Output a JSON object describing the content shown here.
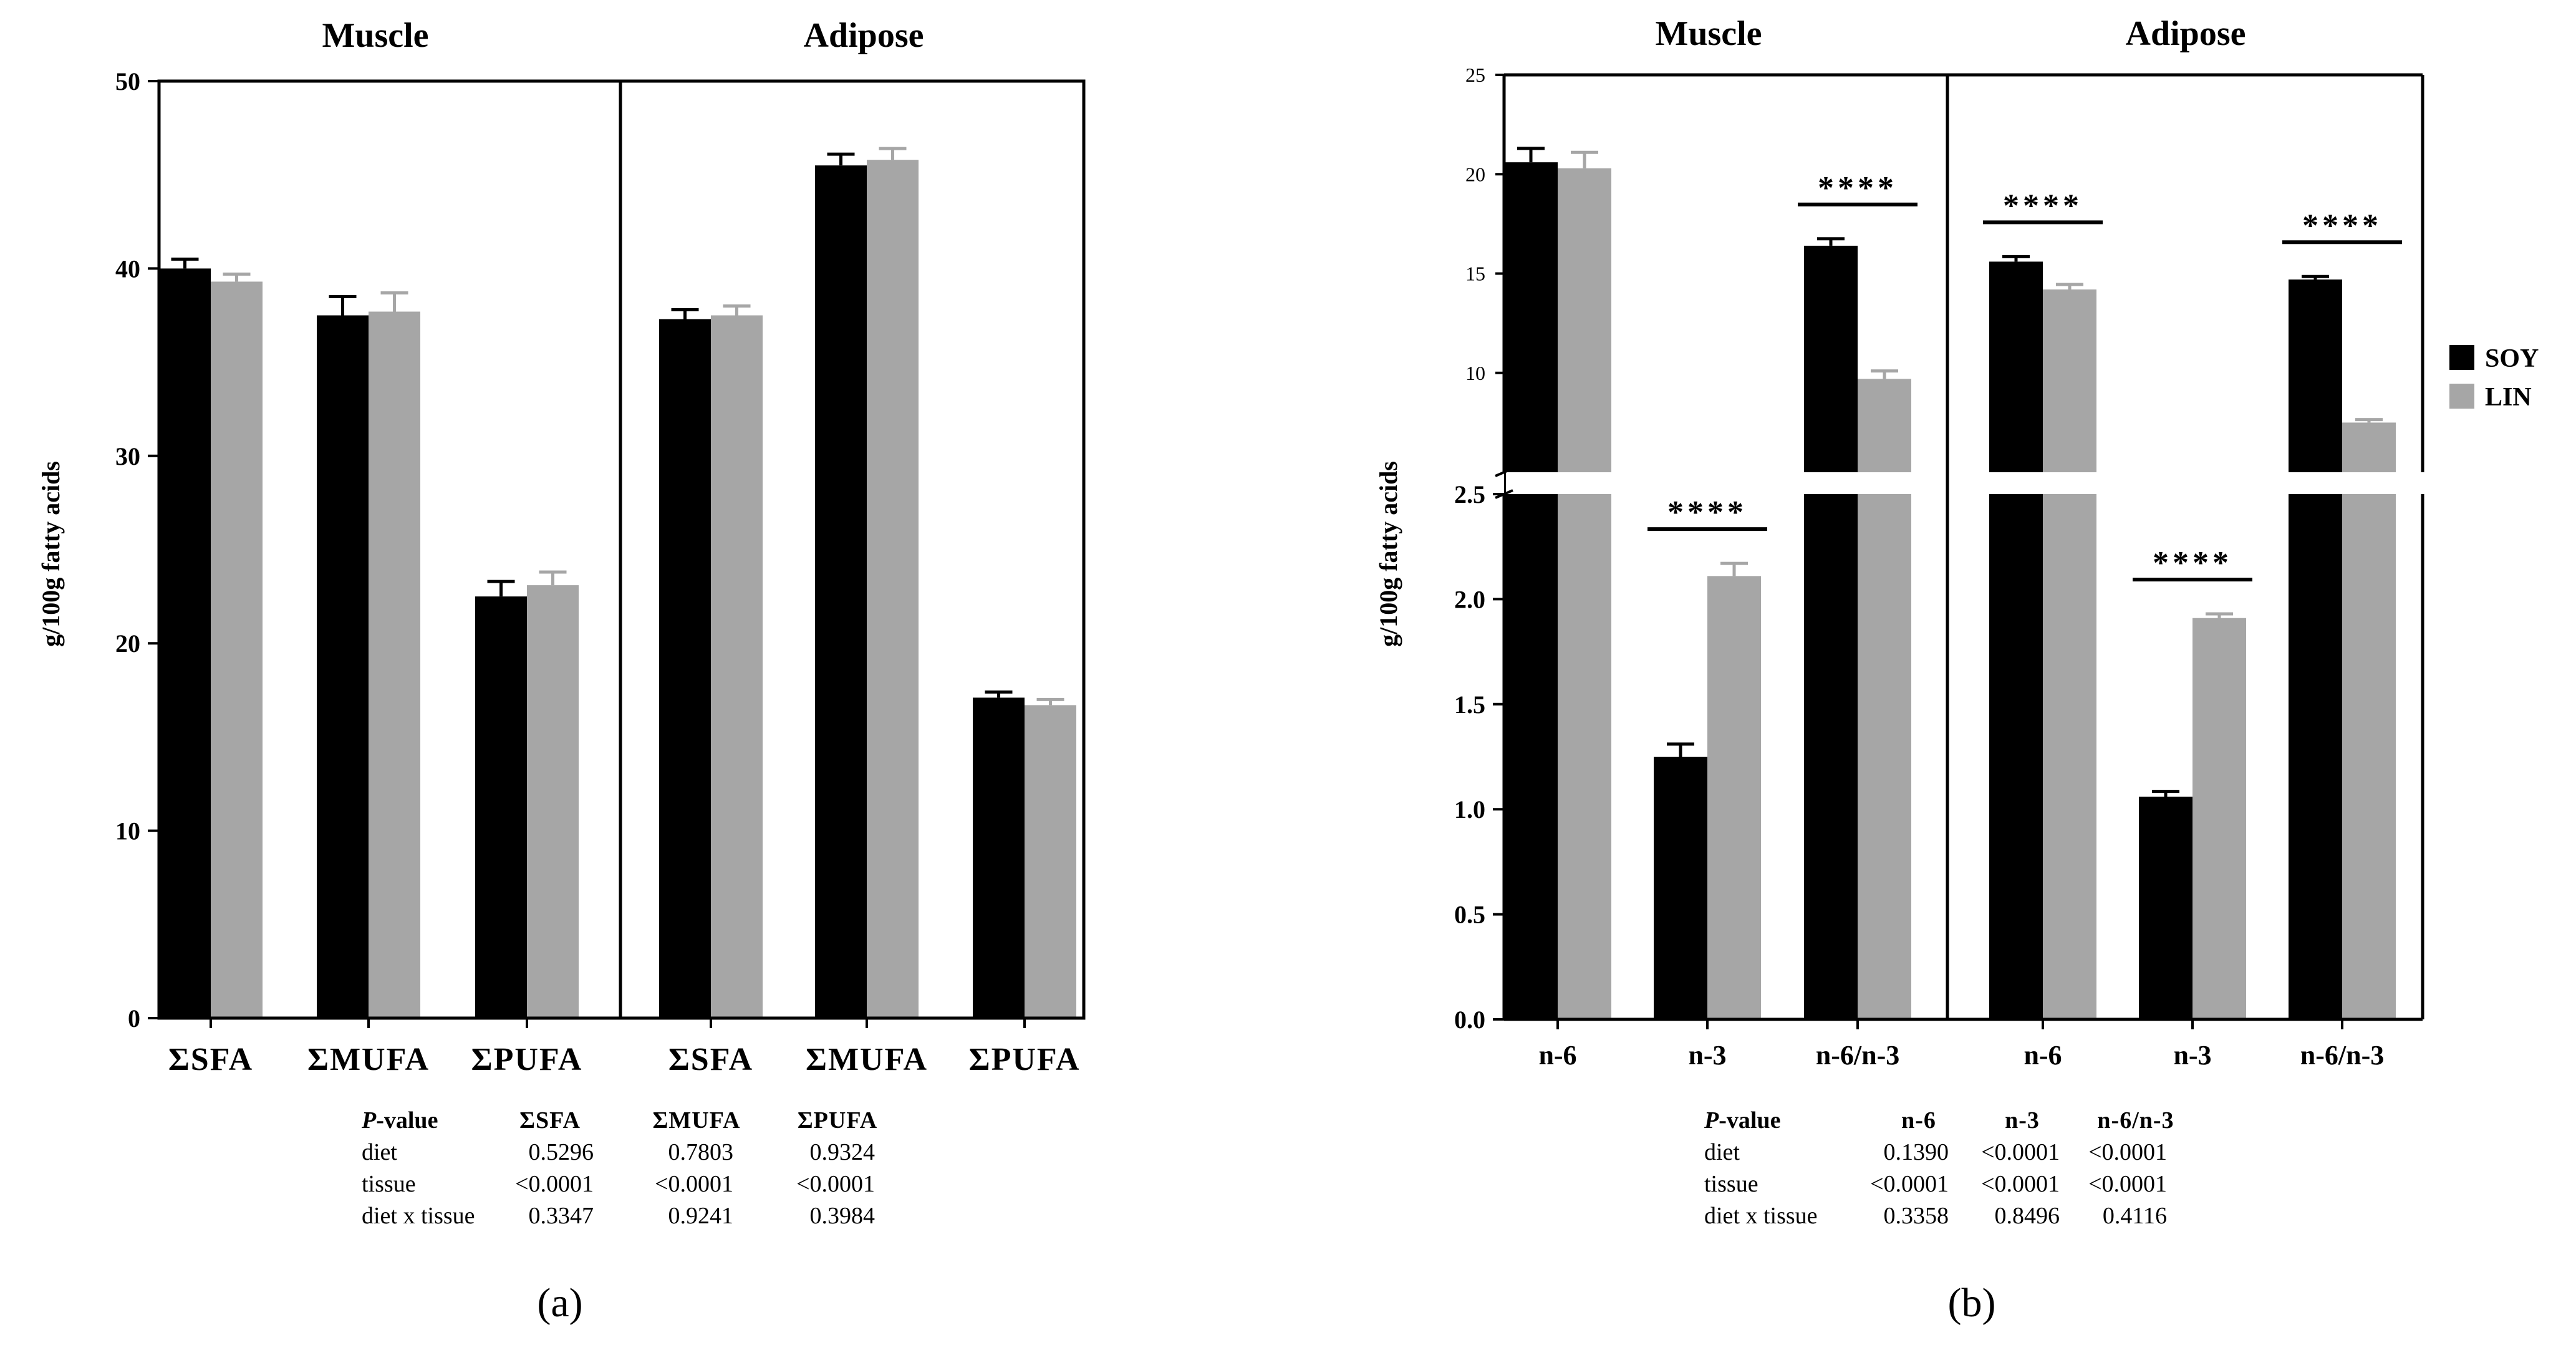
{
  "colors": {
    "soy": "#000000",
    "lin": "#a6a6a6",
    "axis": "#000000",
    "background": "#ffffff"
  },
  "legend": {
    "items": [
      {
        "label": "SOY",
        "color": "#000000"
      },
      {
        "label": "LIN",
        "color": "#a6a6a6"
      }
    ]
  },
  "panels": [
    {
      "label": "(a)",
      "pvalue_table": {
        "header_prefix": "P",
        "header_suffix": "-value",
        "columns": [
          "ΣSFA",
          "ΣMUFA",
          "ΣPUFA"
        ],
        "rows": [
          {
            "label": "diet",
            "values": [
              "0.5296",
              "0.7803",
              "0.9324"
            ]
          },
          {
            "label": "tissue",
            "values": [
              "<0.0001",
              "<0.0001",
              "<0.0001"
            ]
          },
          {
            "label": "diet x tissue",
            "values": [
              "0.3347",
              "0.9241",
              "0.3984"
            ]
          }
        ]
      }
    },
    {
      "label": "(b)",
      "pvalue_table": {
        "header_prefix": "P",
        "header_suffix": "-value",
        "columns": [
          "n-6",
          "n-3",
          "n-6/n-3"
        ],
        "rows": [
          {
            "label": "diet",
            "values": [
              "0.1390",
              "<0.0001",
              "<0.0001"
            ]
          },
          {
            "label": "tissue",
            "values": [
              "<0.0001",
              "<0.0001",
              "<0.0001"
            ]
          },
          {
            "label": "diet x tissue",
            "values": [
              "0.3358",
              "0.8496",
              "0.4116"
            ]
          }
        ]
      }
    }
  ],
  "chart_data": [
    {
      "type": "bar",
      "panel": "a",
      "ylabel": "g/100g fatty acids",
      "ylim": [
        0,
        50
      ],
      "yticks": [
        "0",
        "10",
        "20",
        "30",
        "40",
        "50"
      ],
      "groups": [
        {
          "title": "Muscle",
          "categories": [
            "ΣSFA",
            "ΣMUFA",
            "ΣPUFA"
          ],
          "series": [
            {
              "name": "SOY",
              "values": [
                40.0,
                37.5,
                22.5
              ],
              "errors": [
                0.5,
                1.0,
                0.8
              ]
            },
            {
              "name": "LIN",
              "values": [
                39.3,
                37.7,
                23.1
              ],
              "errors": [
                0.4,
                1.0,
                0.7
              ]
            }
          ]
        },
        {
          "title": "Adipose",
          "categories": [
            "ΣSFA",
            "ΣMUFA",
            "ΣPUFA"
          ],
          "series": [
            {
              "name": "SOY",
              "values": [
                37.3,
                45.5,
                17.1
              ],
              "errors": [
                0.5,
                0.6,
                0.3
              ]
            },
            {
              "name": "LIN",
              "values": [
                37.5,
                45.8,
                16.7
              ],
              "errors": [
                0.5,
                0.6,
                0.3
              ]
            }
          ]
        }
      ]
    },
    {
      "type": "bar",
      "panel": "b",
      "ylabel": "g/100g fatty acids",
      "axis_break": true,
      "ylim_lower": [
        0,
        2.5
      ],
      "ylim_upper": [
        5,
        25
      ],
      "yticks_lower": [
        "0.0",
        "0.5",
        "1.0",
        "1.5",
        "2.0",
        "2.5"
      ],
      "yticks_upper": [
        "10",
        "15",
        "20",
        "25"
      ],
      "groups": [
        {
          "title": "Muscle",
          "categories": [
            "n-6",
            "n-3",
            "n-6/n-3"
          ],
          "series": [
            {
              "name": "SOY",
              "values": [
                20.6,
                1.25,
                16.4
              ],
              "errors": [
                0.7,
                0.06,
                0.35
              ]
            },
            {
              "name": "LIN",
              "values": [
                20.3,
                2.11,
                9.7
              ],
              "errors": [
                0.8,
                0.06,
                0.4
              ]
            }
          ],
          "significance": [
            "",
            "****",
            "****"
          ]
        },
        {
          "title": "Adipose",
          "categories": [
            "n-6",
            "n-3",
            "n-6/n-3"
          ],
          "series": [
            {
              "name": "SOY",
              "values": [
                15.6,
                1.06,
                14.7
              ],
              "errors": [
                0.25,
                0.025,
                0.15
              ]
            },
            {
              "name": "LIN",
              "values": [
                14.2,
                1.91,
                7.5
              ],
              "errors": [
                0.25,
                0.02,
                0.15
              ]
            }
          ],
          "significance": [
            "****",
            "****",
            "****"
          ]
        }
      ]
    }
  ]
}
